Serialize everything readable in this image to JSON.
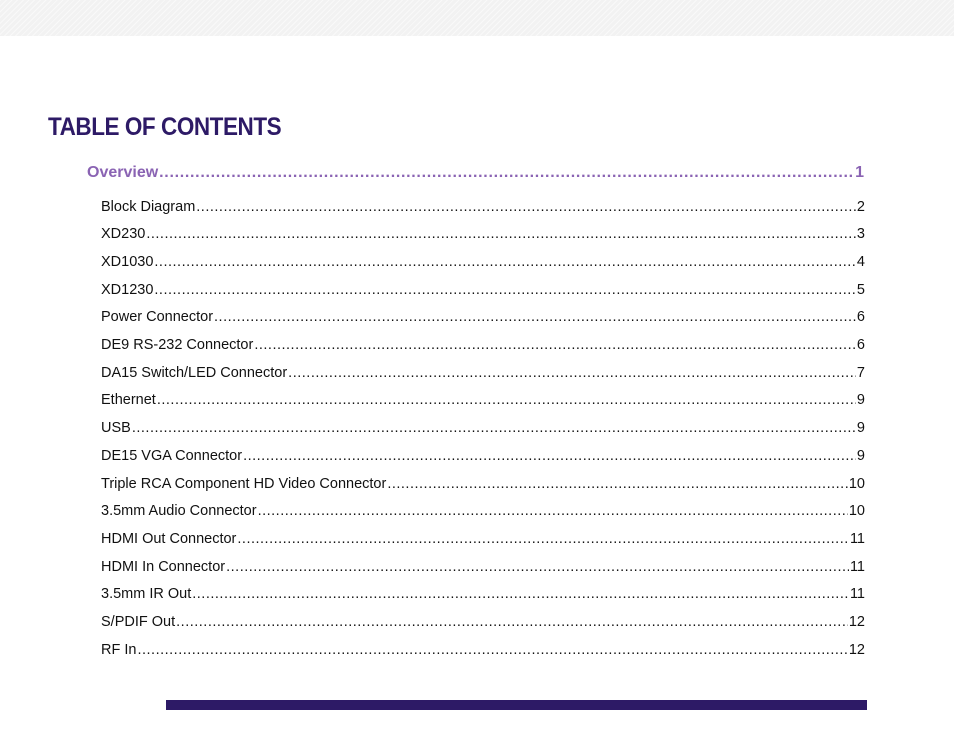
{
  "header": {
    "title": "TABLE OF CONTENTS"
  },
  "toc": {
    "section": {
      "label": "Overview",
      "page": "1"
    },
    "entries": [
      {
        "label": "Block Diagram",
        "page": "2"
      },
      {
        "label": "XD230",
        "page": "3"
      },
      {
        "label": "XD1030",
        "page": "4"
      },
      {
        "label": "XD1230",
        "page": "5"
      },
      {
        "label": "Power Connector",
        "page": "6"
      },
      {
        "label": "DE9 RS-232 Connector",
        "page": "6"
      },
      {
        "label": "DA15 Switch/LED Connector",
        "page": "7"
      },
      {
        "label": "Ethernet",
        "page": "9"
      },
      {
        "label": "USB",
        "page": "9"
      },
      {
        "label": "DE15 VGA Connector",
        "page": "9"
      },
      {
        "label": "Triple RCA Component HD Video Connector",
        "page": "10"
      },
      {
        "label": "3.5mm Audio Connector",
        "page": "10"
      },
      {
        "label": "HDMI Out Connector",
        "page": "11"
      },
      {
        "label": "HDMI In Connector",
        "page": "11"
      },
      {
        "label": "3.5mm IR Out",
        "page": "11"
      },
      {
        "label": "S/PDIF Out",
        "page": "12"
      },
      {
        "label": "RF In",
        "page": "12"
      }
    ]
  },
  "colors": {
    "title": "#2d1a66",
    "section": "#8a63b3",
    "entry_text": "#111111",
    "bottom_bar": "#2d1a66"
  }
}
